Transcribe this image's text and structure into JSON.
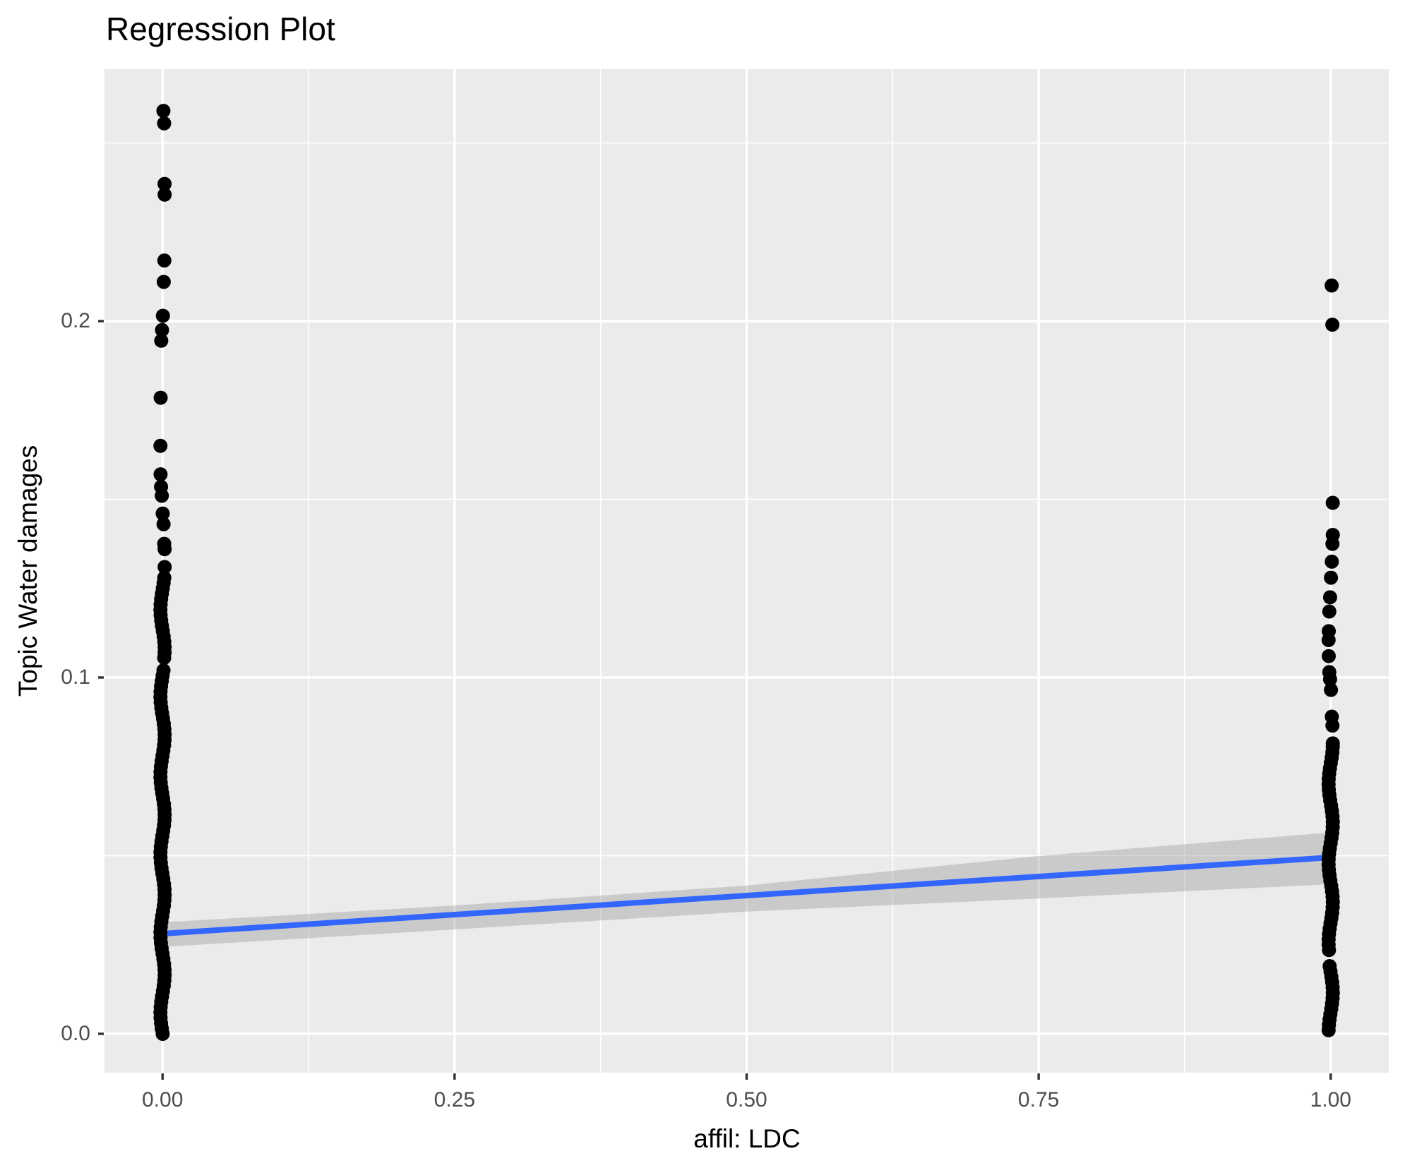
{
  "title": "Regression Plot",
  "x_axis": {
    "title": "affil: LDC"
  },
  "y_axis": {
    "title": "Topic Water damages"
  },
  "chart_data": {
    "type": "scatter",
    "title": "Regression Plot",
    "xlabel": "affil: LDC",
    "ylabel": "Topic Water damages",
    "xlim": [
      -0.0497,
      1.0497
    ],
    "ylim": [
      -0.0109,
      0.2707
    ],
    "grid": true,
    "x_ticks": {
      "values": [
        0,
        0.25,
        0.5,
        0.75,
        1
      ],
      "labels": [
        "0.00",
        "0.25",
        "0.50",
        "0.75",
        "1.00"
      ]
    },
    "y_ticks": {
      "values": [
        0,
        0.1,
        0.2
      ],
      "labels": [
        "0.0",
        "0.1",
        "0.2"
      ]
    },
    "x_minor": [
      0.125,
      0.375,
      0.625,
      0.875
    ],
    "y_minor": [
      0.05,
      0.15,
      0.25
    ],
    "series": [
      {
        "name": "affil LDC = 0",
        "x": 0,
        "discrete": [
          0.259,
          0.2555,
          0.2385,
          0.2355,
          0.217,
          0.211,
          0.2015,
          0.1975,
          0.1945,
          0.1785,
          0.165,
          0.157,
          0.1535,
          0.151,
          0.146,
          0.143,
          0.1375,
          0.136,
          0.131
        ],
        "dense_runs": [
          [
            0.128,
            0.1045
          ],
          [
            0.102,
            0.0
          ]
        ]
      },
      {
        "name": "affil LDC = 1",
        "x": 1,
        "discrete": [
          0.21,
          0.199,
          0.149,
          0.14,
          0.1375,
          0.1325,
          0.128,
          0.1225,
          0.1185,
          0.113,
          0.1105,
          0.106,
          0.1015,
          0.0995,
          0.0965,
          0.089,
          0.0865,
          0.0815
        ],
        "dense_runs": [
          [
            0.0805,
            0.0225
          ],
          [
            0.019,
            0.0005
          ]
        ]
      }
    ],
    "dense_step": 0.0015,
    "regression": {
      "x": [
        0,
        1
      ],
      "y": [
        0.0281,
        0.0495
      ]
    },
    "ci_band": {
      "x": [
        0,
        0.25,
        0.5,
        0.75,
        1
      ],
      "upper": [
        0.0313,
        0.036,
        0.0416,
        0.0499,
        0.0565
      ],
      "lower": [
        0.0244,
        0.0293,
        0.0343,
        0.038,
        0.042
      ]
    },
    "colors": {
      "panel": "#EBEBEB",
      "grid": "#FFFFFF",
      "point": "#000000",
      "line": "#3366FF",
      "band": "rgba(153,153,153,0.4)",
      "tick_text": "#4D4D4D",
      "title_text": "#000000",
      "tick_mark": "#333333"
    }
  }
}
